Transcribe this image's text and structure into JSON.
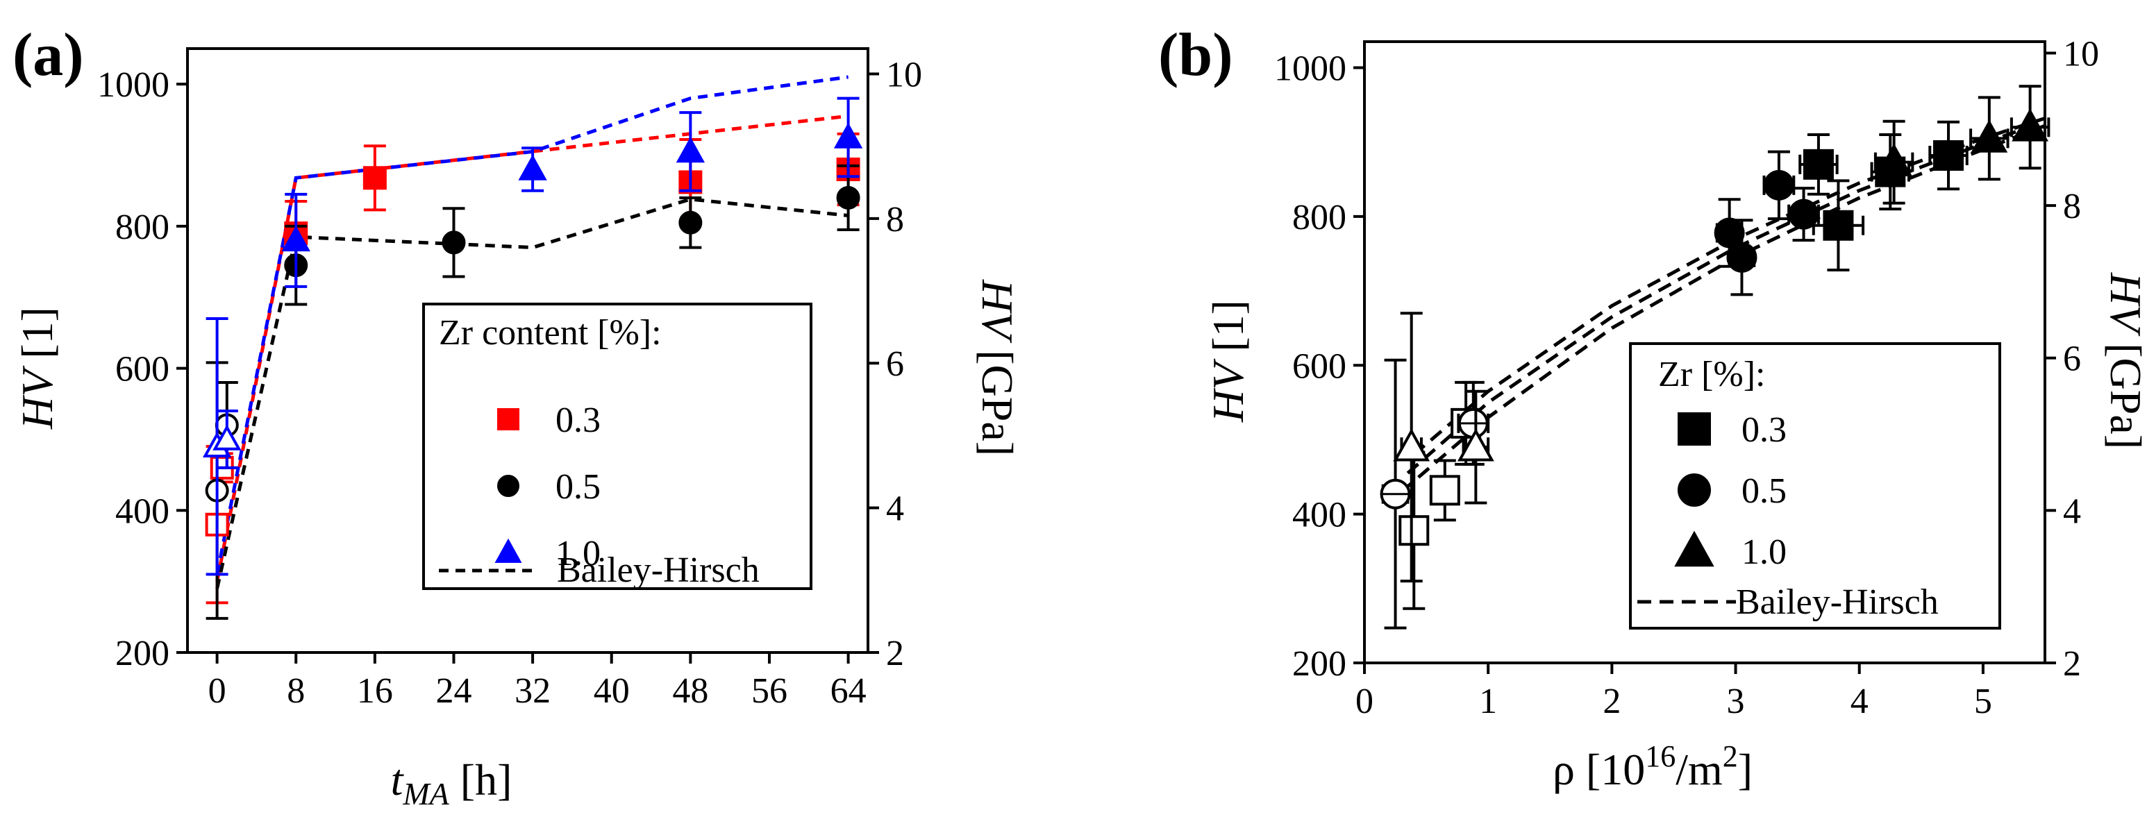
{
  "chart_data": [
    {
      "panel_label": "(a)",
      "type": "scatter",
      "xlabel_main": "t",
      "xlabel_sub": "MA",
      "xlabel_unit": " [h]",
      "ylabel_italic": "HV",
      "ylabel_unit": " [1]",
      "y2label_italic": "HV",
      "y2label_unit": " [GPa]",
      "xlim": [
        -3,
        66
      ],
      "ylim": [
        200,
        1050
      ],
      "y2lim": [
        2,
        10.35
      ],
      "xticks": [
        "0",
        "8",
        "16",
        "24",
        "32",
        "40",
        "48",
        "56",
        "64"
      ],
      "yticks": [
        "200",
        "400",
        "600",
        "800",
        "1000"
      ],
      "y2ticks": [
        "2",
        "4",
        "6",
        "8",
        "10"
      ],
      "legend_title": "Zr content [%]:",
      "legend_location": "lower-right",
      "series": [
        {
          "name": "0.3",
          "color": "#ff0000",
          "marker": "square",
          "points": [
            {
              "x": 0,
              "y": 380,
              "err": 110,
              "filled": false
            },
            {
              "x": 0.5,
              "y": 460,
              "err": 20,
              "filled": false
            },
            {
              "x": 8,
              "y": 790,
              "err": 45,
              "filled": true
            },
            {
              "x": 16,
              "y": 868,
              "err": 45,
              "filled": true
            },
            {
              "x": 48,
              "y": 862,
              "err": 60,
              "filled": true
            },
            {
              "x": 64,
              "y": 880,
              "err": 50,
              "filled": true
            }
          ],
          "fit": {
            "x": [
              0,
              8,
              64
            ],
            "y": [
              300,
              868,
              955
            ]
          }
        },
        {
          "name": "0.5",
          "color": "#000000",
          "marker": "circle",
          "points": [
            {
              "x": 0,
              "y": 428,
              "err": 180,
              "filled": false
            },
            {
              "x": 1,
              "y": 520,
              "err": 60,
              "filled": false
            },
            {
              "x": 8,
              "y": 745,
              "err": 55,
              "filled": true
            },
            {
              "x": 24,
              "y": 777,
              "err": 48,
              "filled": true
            },
            {
              "x": 48,
              "y": 805,
              "err": 35,
              "filled": true
            },
            {
              "x": 64,
              "y": 840,
              "err": 45,
              "filled": true
            }
          ],
          "fit": {
            "x": [
              0,
              8,
              32,
              48,
              64
            ],
            "y": [
              290,
              785,
              770,
              838,
              815
            ]
          }
        },
        {
          "name": "1.0",
          "color": "#0000ff",
          "marker": "triangle",
          "points": [
            {
              "x": 0,
              "y": 490,
              "err": 180,
              "filled": false
            },
            {
              "x": 1,
              "y": 500,
              "err": 40,
              "filled": false
            },
            {
              "x": 8,
              "y": 780,
              "err": 65,
              "filled": true
            },
            {
              "x": 32,
              "y": 880,
              "err": 30,
              "filled": true
            },
            {
              "x": 48,
              "y": 905,
              "err": 55,
              "filled": true
            },
            {
              "x": 64,
              "y": 925,
              "err": 55,
              "filled": true
            }
          ],
          "fit": {
            "x": [
              0,
              8,
              32,
              48,
              64
            ],
            "y": [
              310,
              868,
              905,
              980,
              1010
            ]
          }
        }
      ],
      "fit_legend_label": "Bailey-Hirsch"
    },
    {
      "panel_label": "(b)",
      "type": "scatter",
      "xlabel": "ρ [10",
      "xlabel_sup1": "16",
      "xlabel_mid": "/m",
      "xlabel_sup2": "2",
      "xlabel_end": "]",
      "ylabel_italic": "HV",
      "ylabel_unit": " [1]",
      "y2label_italic": "HV",
      "y2label_unit": " [GPa]",
      "xlim": [
        0,
        5.5
      ],
      "ylim": [
        200,
        1035
      ],
      "y2lim": [
        2,
        10.15
      ],
      "xticks": [
        "0",
        "1",
        "2",
        "3",
        "4",
        "5"
      ],
      "yticks": [
        "200",
        "400",
        "600",
        "800",
        "1000"
      ],
      "y2ticks": [
        "2",
        "4",
        "6",
        "8",
        "10"
      ],
      "legend_title": "Zr [%]:",
      "legend_location": "lower-right",
      "series": [
        {
          "name": "0.3",
          "marker": "square",
          "points": [
            {
              "x": 0.4,
              "y": 378,
              "err": 105,
              "xerr": 0.08,
              "filled": false
            },
            {
              "x": 0.65,
              "y": 432,
              "err": 40,
              "xerr": 0.1,
              "filled": false
            },
            {
              "x": 0.82,
              "y": 522,
              "err": 55,
              "xerr": 0.1,
              "filled": false
            },
            {
              "x": 3.67,
              "y": 870,
              "err": 40,
              "xerr": 0.15,
              "filled": true
            },
            {
              "x": 3.83,
              "y": 788,
              "err": 60,
              "xerr": 0.2,
              "filled": true
            },
            {
              "x": 4.25,
              "y": 860,
              "err": 50,
              "xerr": 0.15,
              "filled": true
            },
            {
              "x": 4.72,
              "y": 882,
              "err": 45,
              "xerr": 0.15,
              "filled": true
            }
          ]
        },
        {
          "name": "0.5",
          "marker": "circle",
          "points": [
            {
              "x": 0.25,
              "y": 427,
              "err": 180,
              "xerr": 0.1,
              "filled": false
            },
            {
              "x": 0.88,
              "y": 522,
              "err": 55,
              "xerr": 0.12,
              "filled": false
            },
            {
              "x": 2.95,
              "y": 778,
              "err": 45,
              "xerr": 0.1,
              "filled": true
            },
            {
              "x": 3.05,
              "y": 745,
              "err": 50,
              "xerr": 0.1,
              "filled": true
            },
            {
              "x": 3.35,
              "y": 842,
              "err": 45,
              "xerr": 0.12,
              "filled": true
            },
            {
              "x": 3.55,
              "y": 803,
              "err": 35,
              "xerr": 0.12,
              "filled": true
            }
          ]
        },
        {
          "name": "1.0",
          "marker": "triangle",
          "points": [
            {
              "x": 0.38,
              "y": 490,
              "err": 180,
              "xerr": 0.08,
              "filled": false
            },
            {
              "x": 0.9,
              "y": 490,
              "err": 75,
              "xerr": 0.1,
              "filled": false
            },
            {
              "x": 4.28,
              "y": 873,
              "err": 55,
              "xerr": 0.15,
              "filled": true
            },
            {
              "x": 5.05,
              "y": 905,
              "err": 55,
              "xerr": 0.15,
              "filled": true
            },
            {
              "x": 5.38,
              "y": 920,
              "err": 55,
              "xerr": 0.15,
              "filled": true
            }
          ]
        }
      ],
      "fits": [
        {
          "x": [
            0.3,
            1.0,
            2.0,
            3.0,
            4.0,
            5.0,
            5.5
          ],
          "y": [
            430,
            530,
            650,
            745,
            825,
            890,
            922
          ]
        },
        {
          "x": [
            0.35,
            1.0,
            2.0,
            3.0,
            4.0,
            5.0,
            5.5
          ],
          "y": [
            455,
            550,
            665,
            758,
            835,
            898,
            928
          ]
        },
        {
          "x": [
            0.4,
            1.0,
            2.0,
            3.0,
            4.0,
            5.0,
            5.5
          ],
          "y": [
            480,
            565,
            680,
            770,
            845,
            905,
            932
          ]
        }
      ],
      "fit_legend_label": "Bailey-Hirsch"
    }
  ]
}
